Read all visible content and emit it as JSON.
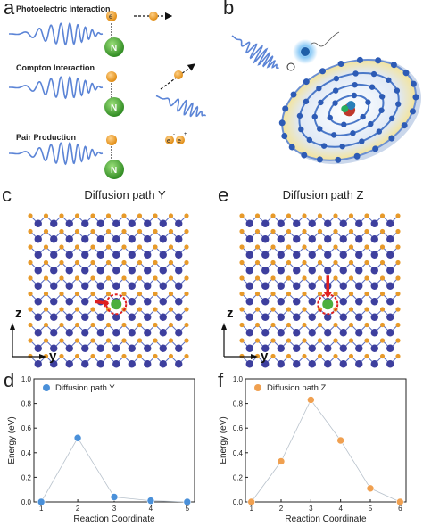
{
  "panel_a": {
    "label": "a",
    "interactions": [
      {
        "name": "Photoelectric Interaction"
      },
      {
        "name": "Compton Interaction"
      },
      {
        "name": "Pair Production"
      }
    ],
    "electron_symbol": "e",
    "electron_minus": "-",
    "electron_plus": "+",
    "nucleus_symbol": "N"
  },
  "panel_b": {
    "label": "b"
  },
  "panel_c": {
    "label": "c",
    "title": "Diffusion path Y",
    "axis_z": "z",
    "axis_y": "y"
  },
  "panel_e": {
    "label": "e",
    "title": "Diffusion path Z",
    "axis_z": "z",
    "axis_y": "y"
  },
  "colors": {
    "photon": "#5b84d6",
    "electron": "#f5a623",
    "nucleus": "#4caf3d",
    "lattice_blue": "#3d3f9e",
    "lattice_orange": "#e79a2a",
    "series_y": "#4a90d9",
    "series_z": "#f0a050",
    "arrow": "#e02020"
  },
  "chart_data": [
    {
      "panel": "d",
      "type": "scatter",
      "series": [
        {
          "name": "Diffusion path Y",
          "x": [
            1,
            2,
            3,
            4,
            5
          ],
          "y": [
            0.0,
            0.52,
            0.04,
            0.01,
            0.0
          ]
        }
      ],
      "xlabel": "Reaction Coordinate",
      "ylabel": "Energy (eV)",
      "xlim": [
        0.8,
        5.2
      ],
      "ylim": [
        0.0,
        1.0
      ],
      "xticks": [
        "1",
        "2",
        "3",
        "4",
        "5"
      ],
      "yticks": [
        "0.0",
        "0.2",
        "0.4",
        "0.6",
        "0.8",
        "1.0"
      ],
      "legend": "top-left",
      "grid": false
    },
    {
      "panel": "f",
      "type": "scatter",
      "series": [
        {
          "name": "Diffusion path Z",
          "x": [
            1,
            2,
            3,
            4,
            5,
            6
          ],
          "y": [
            0.0,
            0.33,
            0.83,
            0.5,
            0.11,
            0.0
          ]
        }
      ],
      "xlabel": "Reaction Coordinate",
      "ylabel": "Energy (eV)",
      "xlim": [
        0.8,
        6.2
      ],
      "ylim": [
        0.0,
        1.0
      ],
      "xticks": [
        "1",
        "2",
        "3",
        "4",
        "5",
        "6"
      ],
      "yticks": [
        "0.0",
        "0.2",
        "0.4",
        "0.6",
        "0.8",
        "1.0"
      ],
      "legend": "top-left",
      "grid": false
    }
  ],
  "chart_panel_labels": [
    "d",
    "f"
  ]
}
